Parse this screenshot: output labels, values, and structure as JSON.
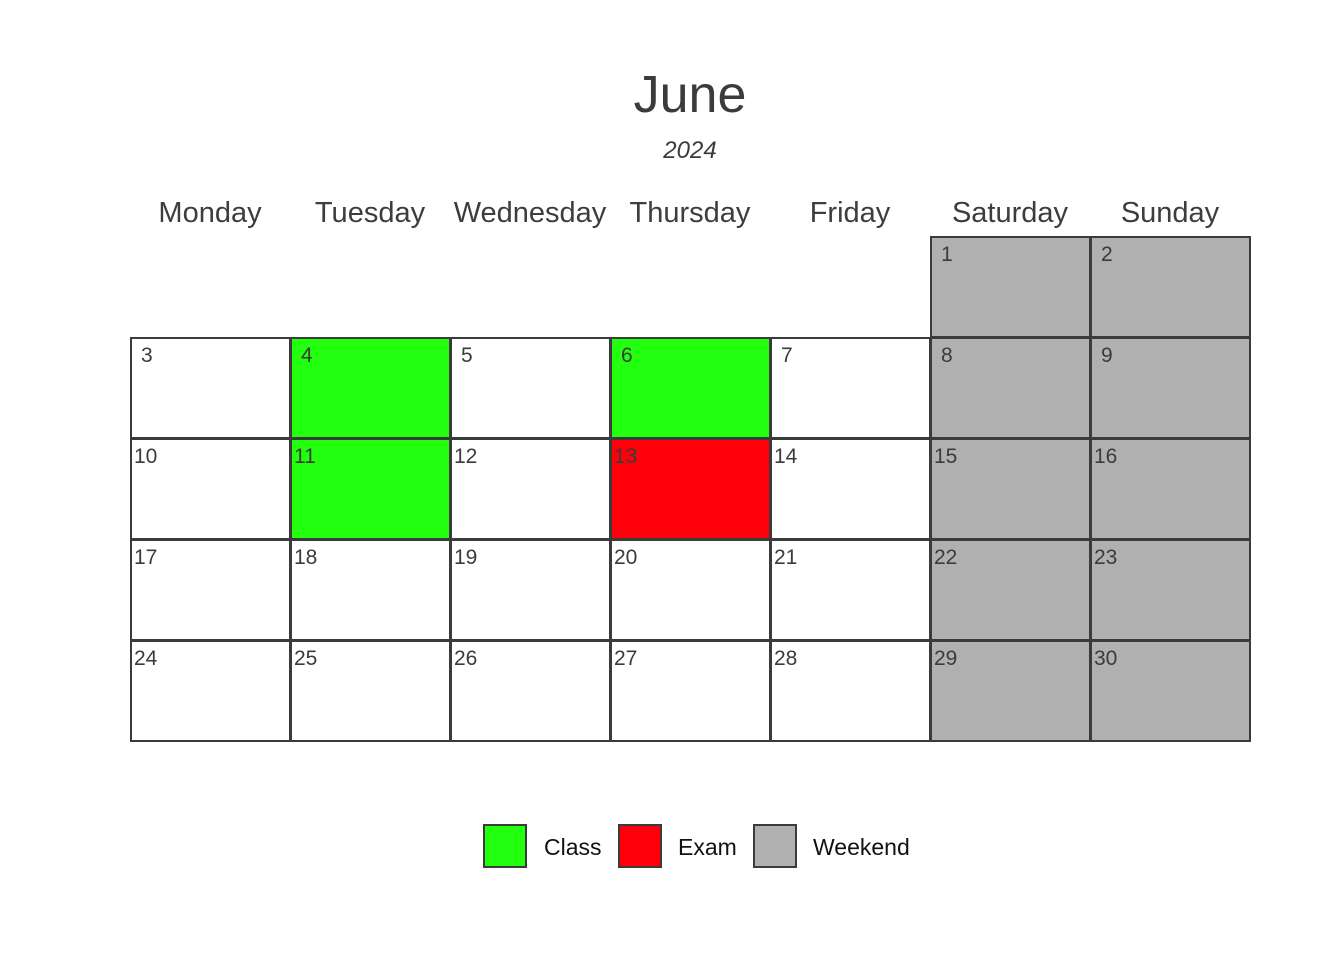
{
  "header": {
    "month": "June",
    "year": "2024"
  },
  "weekdays": [
    "Monday",
    "Tuesday",
    "Wednesday",
    "Thursday",
    "Friday",
    "Saturday",
    "Sunday"
  ],
  "colors": {
    "class": "#22ff0f",
    "exam": "#ff000b",
    "weekend": "#b0b0b0",
    "regular": "#ffffff"
  },
  "days": [
    {
      "day": "1",
      "weekday": "Saturday",
      "category": "weekend"
    },
    {
      "day": "2",
      "weekday": "Sunday",
      "category": "weekend"
    },
    {
      "day": "3",
      "weekday": "Monday",
      "category": "regular"
    },
    {
      "day": "4",
      "weekday": "Tuesday",
      "category": "class"
    },
    {
      "day": "5",
      "weekday": "Wednesday",
      "category": "regular"
    },
    {
      "day": "6",
      "weekday": "Thursday",
      "category": "class"
    },
    {
      "day": "7",
      "weekday": "Friday",
      "category": "regular"
    },
    {
      "day": "8",
      "weekday": "Saturday",
      "category": "weekend"
    },
    {
      "day": "9",
      "weekday": "Sunday",
      "category": "weekend"
    },
    {
      "day": "10",
      "weekday": "Monday",
      "category": "regular"
    },
    {
      "day": "11",
      "weekday": "Tuesday",
      "category": "class"
    },
    {
      "day": "12",
      "weekday": "Wednesday",
      "category": "regular"
    },
    {
      "day": "13",
      "weekday": "Thursday",
      "category": "exam"
    },
    {
      "day": "14",
      "weekday": "Friday",
      "category": "regular"
    },
    {
      "day": "15",
      "weekday": "Saturday",
      "category": "weekend"
    },
    {
      "day": "16",
      "weekday": "Sunday",
      "category": "weekend"
    },
    {
      "day": "17",
      "weekday": "Monday",
      "category": "regular"
    },
    {
      "day": "18",
      "weekday": "Tuesday",
      "category": "regular"
    },
    {
      "day": "19",
      "weekday": "Wednesday",
      "category": "regular"
    },
    {
      "day": "20",
      "weekday": "Thursday",
      "category": "regular"
    },
    {
      "day": "21",
      "weekday": "Friday",
      "category": "regular"
    },
    {
      "day": "22",
      "weekday": "Saturday",
      "category": "weekend"
    },
    {
      "day": "23",
      "weekday": "Sunday",
      "category": "weekend"
    },
    {
      "day": "24",
      "weekday": "Monday",
      "category": "regular"
    },
    {
      "day": "25",
      "weekday": "Tuesday",
      "category": "regular"
    },
    {
      "day": "26",
      "weekday": "Wednesday",
      "category": "regular"
    },
    {
      "day": "27",
      "weekday": "Thursday",
      "category": "regular"
    },
    {
      "day": "28",
      "weekday": "Friday",
      "category": "regular"
    },
    {
      "day": "29",
      "weekday": "Saturday",
      "category": "weekend"
    },
    {
      "day": "30",
      "weekday": "Sunday",
      "category": "weekend"
    }
  ],
  "legend": [
    {
      "label": "Class",
      "category": "class"
    },
    {
      "label": "Exam",
      "category": "exam"
    },
    {
      "label": "Weekend",
      "category": "weekend"
    }
  ]
}
